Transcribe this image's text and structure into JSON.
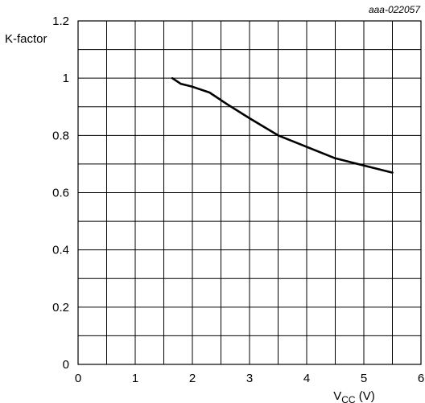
{
  "chart_data": {
    "type": "line",
    "doc_id": "aaa-022057",
    "title": "",
    "ylabel": "K-factor",
    "xlabel_main": "V",
    "xlabel_sub": "CC",
    "xlabel_unit": " (V)",
    "xlim": [
      0,
      6
    ],
    "ylim": [
      0,
      1.2
    ],
    "x_ticks": [
      0,
      1,
      2,
      3,
      4,
      5,
      6
    ],
    "y_ticks": [
      0,
      0.2,
      0.4,
      0.6,
      0.8,
      1,
      1.2
    ],
    "x_tick_labels": [
      "0",
      "1",
      "2",
      "3",
      "4",
      "5",
      "6"
    ],
    "y_tick_labels": [
      "0",
      "0.2",
      "0.4",
      "0.6",
      "0.8",
      "1",
      "1.2"
    ],
    "x_minor_step": 0.5,
    "y_minor_step": 0.1,
    "grid": true,
    "series": [
      {
        "x": [
          1.65,
          1.8,
          2.0,
          2.3,
          2.6,
          3.0,
          3.5,
          4.0,
          4.5,
          5.0,
          5.5
        ],
        "y": [
          1.0,
          0.98,
          0.97,
          0.95,
          0.91,
          0.86,
          0.8,
          0.76,
          0.72,
          0.695,
          0.67
        ]
      }
    ]
  }
}
